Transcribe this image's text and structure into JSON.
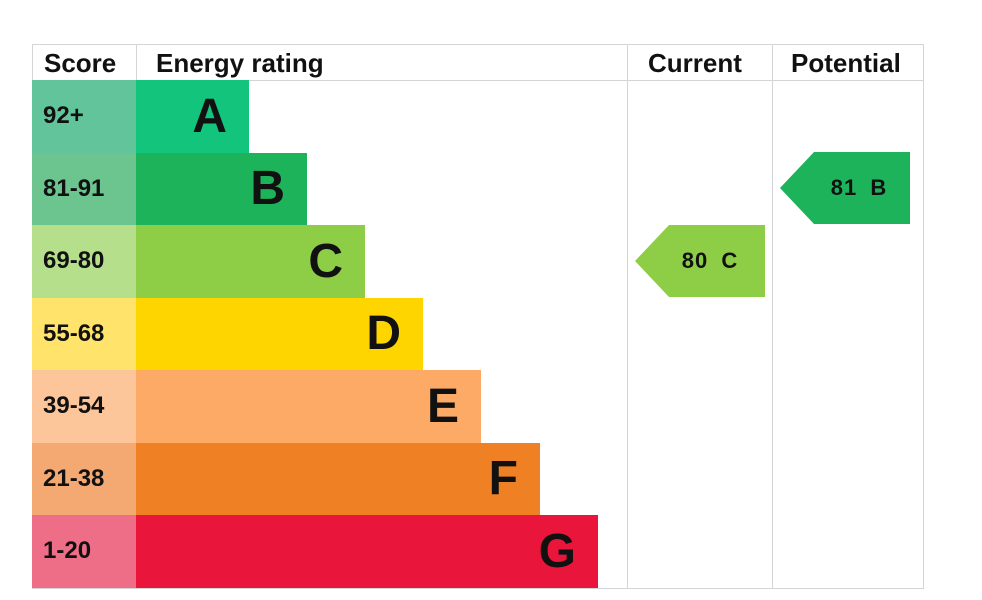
{
  "headers": {
    "score": "Score",
    "energy_rating": "Energy rating",
    "current": "Current",
    "potential": "Potential"
  },
  "bands": [
    {
      "range": "92+",
      "letter": "A",
      "color": "#12c47c",
      "score_bg": "#62c49a"
    },
    {
      "range": "81-91",
      "letter": "B",
      "color": "#1db35a",
      "score_bg": "#6cc48f"
    },
    {
      "range": "69-80",
      "letter": "C",
      "color": "#8dce46",
      "score_bg": "#b6df8c"
    },
    {
      "range": "55-68",
      "letter": "D",
      "color": "#ffd500",
      "score_bg": "#ffe36a"
    },
    {
      "range": "39-54",
      "letter": "E",
      "color": "#fcaa65",
      "score_bg": "#fdc59a"
    },
    {
      "range": "21-38",
      "letter": "F",
      "color": "#ef8023",
      "score_bg": "#f4a872"
    },
    {
      "range": "1-20",
      "letter": "G",
      "color": "#e9153b",
      "score_bg": "#ee6e88"
    }
  ],
  "current": {
    "label": "80  C",
    "value": 80,
    "band": "C",
    "color": "#8dce46"
  },
  "potential": {
    "label": "81  B",
    "value": 81,
    "band": "B",
    "color": "#1db35a"
  },
  "chart_data": {
    "type": "table",
    "title": "Energy rating",
    "columns": [
      "Score",
      "Energy rating",
      "Current",
      "Potential"
    ],
    "categories": [
      "A",
      "B",
      "C",
      "D",
      "E",
      "F",
      "G"
    ],
    "ranges": [
      "92+",
      "81-91",
      "69-80",
      "55-68",
      "39-54",
      "21-38",
      "1-20"
    ],
    "colors": [
      "#12c47c",
      "#1db35a",
      "#8dce46",
      "#ffd500",
      "#fcaa65",
      "#ef8023",
      "#e9153b"
    ],
    "series": [
      {
        "name": "Current",
        "value": 80,
        "band": "C"
      },
      {
        "name": "Potential",
        "value": 81,
        "band": "B"
      }
    ]
  }
}
